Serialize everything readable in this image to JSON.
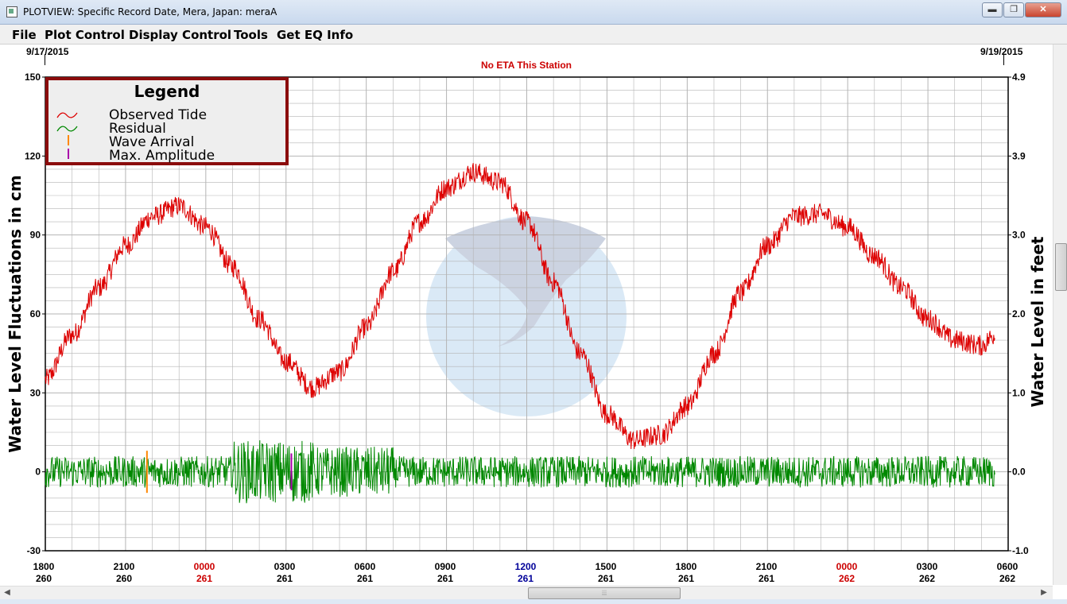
{
  "window": {
    "title": "PLOTVIEW: Specific Record Date, Mera, Japan: meraA",
    "min_glyph": "▬",
    "max_glyph": "❐",
    "close_glyph": "✕"
  },
  "menu": {
    "items": [
      "File",
      "Plot Control",
      "Display Control",
      "Tools",
      "Get EQ Info"
    ]
  },
  "plot": {
    "start_date": "9/17/2015",
    "end_date": "9/19/2015",
    "eta_note": "No ETA This Station"
  },
  "legend": {
    "title": "Legend",
    "entries": [
      "Observed Tide",
      "Residual",
      "Wave Arrival",
      "Max. Amplitude"
    ],
    "colors": {
      "observed": "#dd0000",
      "residual": "#008800",
      "wave_arrival": "#ff8800",
      "max_amplitude": "#aa00aa"
    }
  },
  "chart_data": {
    "type": "line",
    "ylabel": "Water Level Fluctuations in cm",
    "ylabel_right": "Water Level in feet",
    "ylim": [
      -30,
      150
    ],
    "yticks": [
      "150",
      "120",
      "90",
      "60",
      "30",
      "0",
      "-30"
    ],
    "yticks_right": [
      "4.9",
      "3.9",
      "3.0",
      "2.0",
      "1.0",
      "0.0",
      "-1.0"
    ],
    "xticks": [
      {
        "time": "1800",
        "day": "260",
        "color": "#000000"
      },
      {
        "time": "2100",
        "day": "260",
        "color": "#000000"
      },
      {
        "time": "0000",
        "day": "261",
        "color": "#cc0000"
      },
      {
        "time": "0300",
        "day": "261",
        "color": "#000000"
      },
      {
        "time": "0600",
        "day": "261",
        "color": "#000000"
      },
      {
        "time": "0900",
        "day": "261",
        "color": "#000000"
      },
      {
        "time": "1200",
        "day": "261",
        "color": "#000099"
      },
      {
        "time": "1500",
        "day": "261",
        "color": "#000000"
      },
      {
        "time": "1800",
        "day": "261",
        "color": "#000000"
      },
      {
        "time": "2100",
        "day": "261",
        "color": "#000000"
      },
      {
        "time": "0000",
        "day": "262",
        "color": "#cc0000"
      },
      {
        "time": "0300",
        "day": "262",
        "color": "#000000"
      },
      {
        "time": "0600",
        "day": "262",
        "color": "#000000"
      }
    ],
    "grid": true,
    "legend_position": "top-left",
    "series": [
      {
        "name": "Observed Tide",
        "color": "#dd0000",
        "x_hours": [
          0,
          1,
          2,
          3,
          4,
          5,
          6,
          7,
          8,
          9,
          10,
          11,
          12,
          13,
          14,
          15,
          16,
          17,
          18,
          19,
          20,
          21,
          22,
          23,
          24,
          25,
          26,
          27,
          28,
          29,
          30,
          31,
          32,
          33,
          34,
          35,
          35.5
        ],
        "y": [
          35,
          52,
          70,
          86,
          97,
          101,
          93,
          78,
          58,
          42,
          32,
          38,
          55,
          76,
          95,
          108,
          114,
          110,
          95,
          72,
          45,
          22,
          12,
          14,
          25,
          45,
          68,
          86,
          97,
          98,
          93,
          82,
          70,
          58,
          50,
          48,
          52
        ],
        "noise_cm": 4
      },
      {
        "name": "Residual",
        "color": "#008800",
        "x_hours": [
          0,
          35.5
        ],
        "baseline": 0,
        "noise_cm": 6
      }
    ],
    "wave_arrival_hour": 3.8,
    "max_amplitude_hour": 9.2
  }
}
